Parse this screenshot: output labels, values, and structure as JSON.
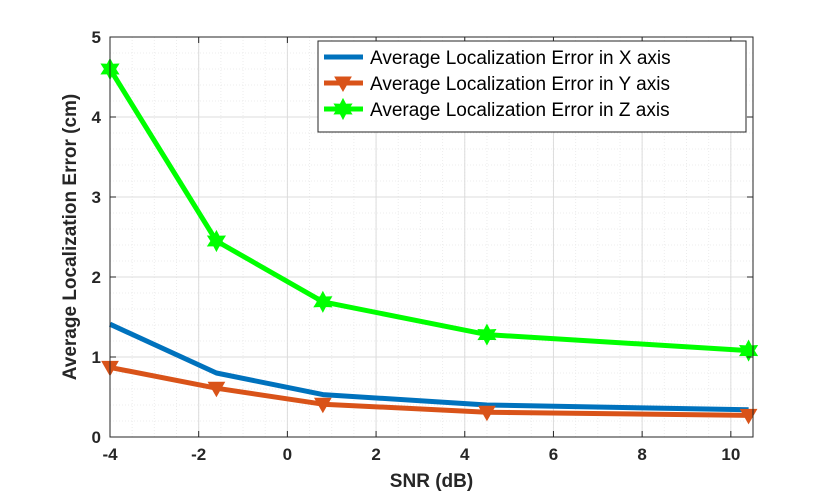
{
  "chart_data": {
    "type": "line",
    "title": "",
    "xlabel": "SNR (dB)",
    "ylabel": "Average Localization Error (cm)",
    "xlim": [
      -4,
      10.5
    ],
    "ylim": [
      0,
      5
    ],
    "xticks": [
      -4,
      -2,
      0,
      2,
      4,
      6,
      8,
      10
    ],
    "yticks": [
      0,
      1,
      2,
      3,
      4,
      5
    ],
    "grid": true,
    "minor_grid": true,
    "legend_position": "top-right",
    "x": [
      -4,
      -1.6,
      0.8,
      4.5,
      10.4
    ],
    "series": [
      {
        "name": "Average Localization Error in X axis",
        "color": "#0072BD",
        "marker": "none",
        "values": [
          1.41,
          0.8,
          0.53,
          0.4,
          0.34
        ]
      },
      {
        "name": "Average Localization Error in Y axis",
        "color": "#D95319",
        "marker": "triangle-down",
        "values": [
          0.87,
          0.61,
          0.41,
          0.31,
          0.27
        ]
      },
      {
        "name": "Average Localization Error in Z axis",
        "color": "#00FF00",
        "marker": "hexagram",
        "values": [
          4.6,
          2.45,
          1.69,
          1.28,
          1.08
        ]
      }
    ]
  }
}
